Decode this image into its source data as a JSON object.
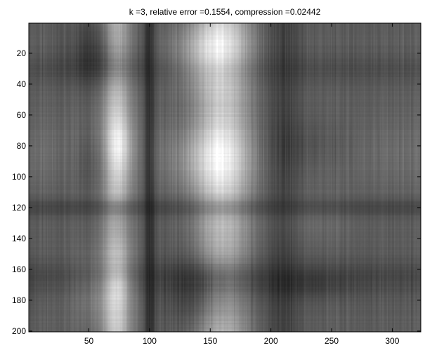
{
  "title": "k =3, relative error =0.1554, compression =0.02442",
  "image": {
    "rows": 200,
    "cols": 323,
    "colormap": "gray"
  },
  "axes": {
    "x_ticks": [
      50,
      100,
      150,
      200,
      250,
      300
    ],
    "y_ticks": [
      20,
      40,
      60,
      80,
      100,
      120,
      140,
      160,
      180,
      200
    ],
    "xlim": [
      0.5,
      323.5
    ],
    "ylim": [
      0.5,
      200.5
    ],
    "y_direction": "reverse"
  }
}
